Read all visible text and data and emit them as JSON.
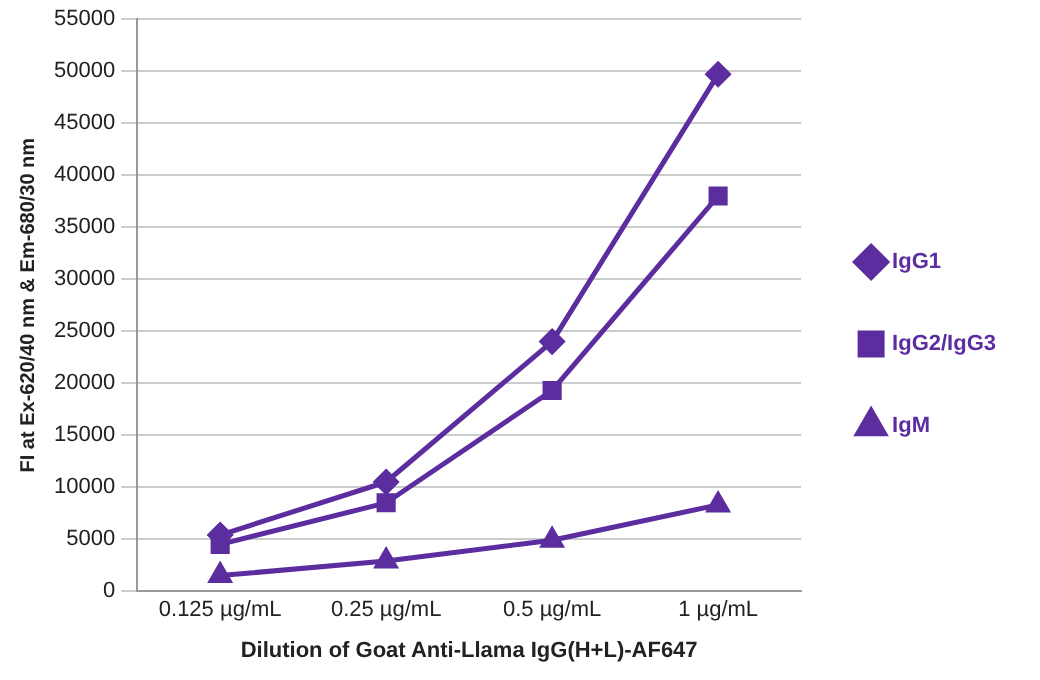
{
  "chart_data": {
    "type": "line",
    "xlabel": "Dilution of Goat Anti-Llama IgG(H+L)-AF647",
    "ylabel": "FI at Ex-620/40 nm & Em-680/30 nm",
    "categories": [
      "0.125 µg/mL",
      "0.25 µg/mL",
      "0.5 µg/mL",
      "1 µg/mL"
    ],
    "series": [
      {
        "name": "IgG1",
        "color": "#5b2d9e",
        "marker": "diamond",
        "values": [
          5400,
          10500,
          24000,
          49700
        ]
      },
      {
        "name": "IgG2/IgG3",
        "color": "#5b2d9e",
        "marker": "square",
        "values": [
          4500,
          8500,
          19300,
          38000
        ]
      },
      {
        "name": "IgM",
        "color": "#5b2d9e",
        "marker": "triangle",
        "values": [
          1500,
          2900,
          4900,
          8300
        ]
      }
    ],
    "ylim": [
      0,
      55000
    ],
    "yticks": [
      0,
      5000,
      10000,
      15000,
      20000,
      25000,
      30000,
      35000,
      40000,
      45000,
      50000,
      55000
    ],
    "grid": "y",
    "legend": "right",
    "line_style": "solid"
  }
}
